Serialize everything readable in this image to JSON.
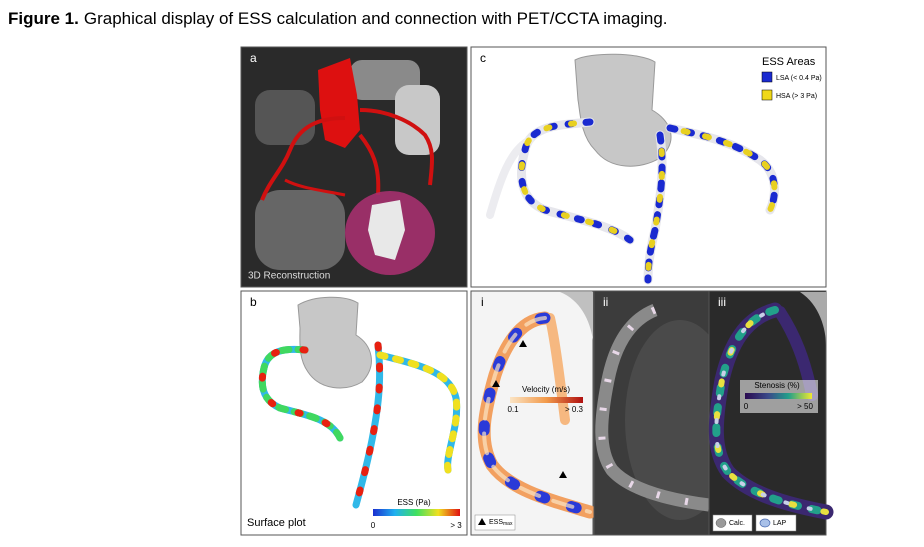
{
  "figure": {
    "label": "Figure 1.",
    "caption": "Graphical display of ESS calculation and connection with PET/CCTA imaging."
  },
  "panels": {
    "a": {
      "label": "a",
      "caption": "3D Reconstruction"
    },
    "b": {
      "label": "b",
      "caption": "Surface plot",
      "colorbar": {
        "title": "ESS (Pa)",
        "min": "0",
        "max": "> 3"
      }
    },
    "c": {
      "label": "c",
      "legend": {
        "title": "ESS Areas",
        "items": [
          "LSA (< 0.4 Pa)",
          "HSA (> 3 Pa)"
        ]
      }
    },
    "i": {
      "label": "i",
      "colorbar": {
        "title": "Velocity (m/s)",
        "min": "0.1",
        "max": "> 0.3"
      },
      "legend": {
        "text": "ESS",
        "subscript": "max"
      }
    },
    "ii": {
      "label": "ii"
    },
    "iii": {
      "label": "iii",
      "colorbar": {
        "title": "Stenosis (%)",
        "min": "0",
        "max": "> 50"
      },
      "legend": [
        "Calc.",
        "LAP"
      ]
    }
  }
}
